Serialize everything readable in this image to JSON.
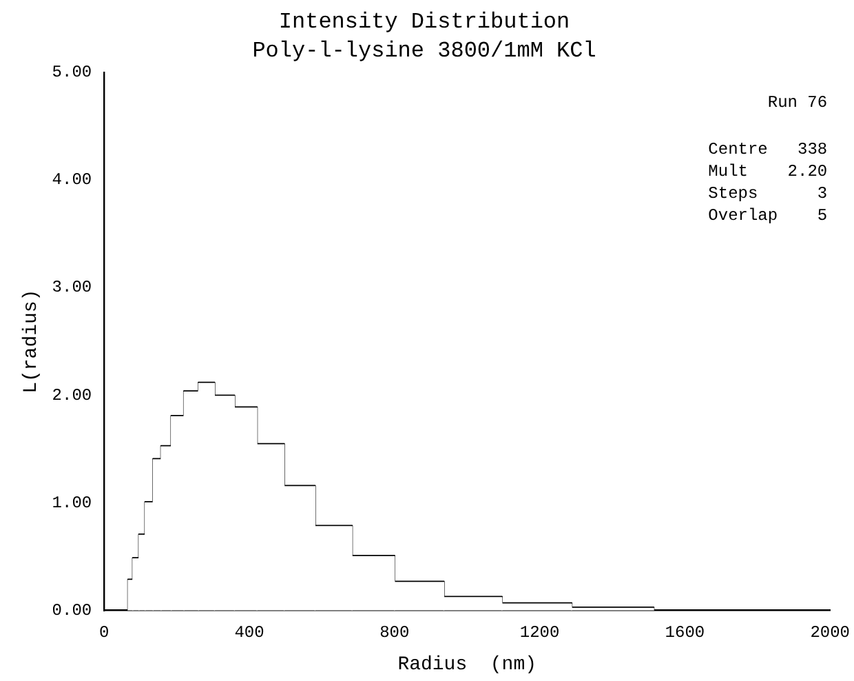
{
  "chart_data": {
    "type": "histogram",
    "title": "Intensity Distribution",
    "subtitle": "Poly-l-lysine 3800/1mM KCl",
    "xlabel": "Radius  (nm)",
    "ylabel": "L(radius)",
    "bins": [
      66,
      79,
      96,
      113,
      135,
      157,
      185,
      220,
      260,
      304,
      359,
      421,
      496,
      581,
      683,
      800,
      936,
      1096,
      1288,
      1514
    ],
    "values": [
      0.28,
      0.48,
      0.7,
      1.0,
      1.4,
      1.52,
      1.8,
      2.03,
      2.11,
      1.99,
      1.88,
      1.54,
      1.15,
      0.78,
      0.5,
      0.26,
      0.12,
      0.06,
      0.02
    ],
    "color": "#ffffff",
    "xlim": [
      0,
      2000
    ],
    "xticks": [
      0,
      400,
      800,
      1200,
      1600,
      2000
    ],
    "ylim": [
      0,
      5
    ],
    "yticks": [
      {
        "value": 0,
        "label": "0.00"
      },
      {
        "value": 1,
        "label": "1.00"
      },
      {
        "value": 2,
        "label": "2.00"
      },
      {
        "value": 3,
        "label": "3.00"
      },
      {
        "value": 4,
        "label": "4.00"
      },
      {
        "value": 5,
        "label": "5.00"
      }
    ],
    "annotations": [
      "Run 76",
      "Centre   338",
      "Mult    2.20",
      "Steps      3",
      "Overlap    5"
    ],
    "grid": false,
    "legend": false
  }
}
